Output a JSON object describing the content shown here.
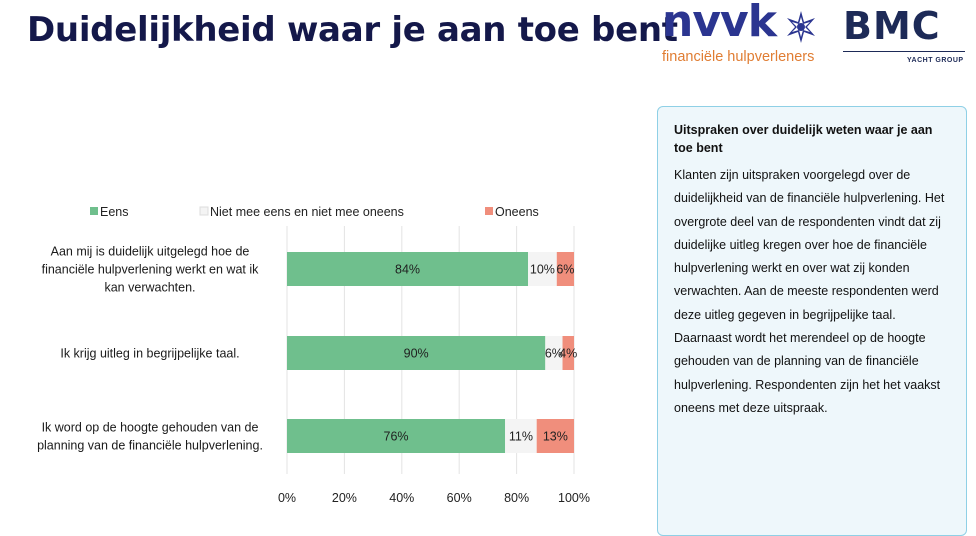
{
  "header": {
    "title": "Duidelijkheid waar je aan toe bent"
  },
  "logos": {
    "nvvk_word": "nvvk",
    "nvvk_sub": "financiële hulpverleners",
    "bmc_word": "BMC",
    "bmc_sub": "YACHT GROUP"
  },
  "chart_data": {
    "type": "bar",
    "orientation": "horizontal",
    "stacked": true,
    "title": "",
    "categories": [
      [
        "Aan mij is duidelijk uitgelegd hoe de",
        "financiële hulpverlening werkt en wat ik",
        "kan verwachten."
      ],
      [
        "Ik krijg uitleg in begrijpelijke taal."
      ],
      [
        "Ik word op de hoogte gehouden van de",
        "planning van de financiële hulpverlening."
      ]
    ],
    "series": [
      {
        "name": "Eens",
        "values": [
          84,
          90,
          76
        ],
        "labels": [
          "84%",
          "90%",
          "76%"
        ],
        "color": "#6fbf8d"
      },
      {
        "name": "Niet mee eens en niet mee oneens",
        "values": [
          10,
          6,
          11
        ],
        "labels": [
          "10%",
          "6%",
          "11%"
        ],
        "color": "#f4f4f4"
      },
      {
        "name": "Oneens",
        "values": [
          6,
          4,
          13
        ],
        "labels": [
          "6%",
          "4%",
          "13%"
        ],
        "color": "#f08e7c"
      }
    ],
    "xlim": [
      0,
      100
    ],
    "xticks": [
      "0%",
      "20%",
      "40%",
      "60%",
      "80%",
      "100%"
    ],
    "xlabel": "",
    "ylabel": "",
    "legend_position": "top",
    "grid": true
  },
  "panel": {
    "title": "Uitspraken over duidelijk weten waar je aan toe bent",
    "body": "Klanten zijn uitspraken voorgelegd over de duidelijkheid van de financiële hulpverlening. Het overgrote deel van de respondenten vindt dat zij duidelijke uitleg kregen over hoe de financiële hulpverlening werkt en over wat zij konden verwachten. Aan de meeste respondenten werd deze uitleg gegeven in begrijpelijke taal.  Daarnaast wordt het merendeel op de hoogte gehouden van de planning van de financiële hulpverlening. Respondenten zijn het het vaakst oneens met deze uitspraak."
  }
}
